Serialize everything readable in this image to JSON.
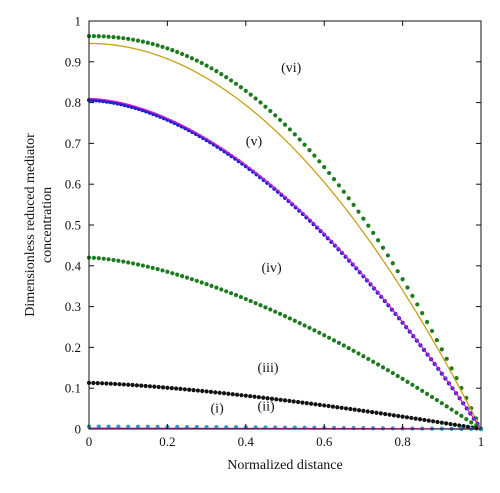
{
  "chart_data": {
    "type": "line",
    "xlabel": "Normalized distance",
    "ylabel_lines": [
      "Dimensionless reduced mediator",
      "concentration"
    ],
    "xlim": [
      0,
      1
    ],
    "ylim": [
      0,
      1
    ],
    "x_ticks": [
      "0",
      "0.2",
      "0.4",
      "0.6",
      "0.8",
      "1"
    ],
    "y_ticks": [
      "0",
      "0.1",
      "0.2",
      "0.3",
      "0.4",
      "0.5",
      "0.6",
      "0.7",
      "0.8",
      "0.9",
      "1"
    ],
    "grid": false,
    "legend": "none",
    "annotations": [
      {
        "text": "(i)",
        "x": 0.31,
        "y": 0.04
      },
      {
        "text": "(ii)",
        "x": 0.43,
        "y": 0.045
      },
      {
        "text": "(iii)",
        "x": 0.43,
        "y": 0.14
      },
      {
        "text": "(iv)",
        "x": 0.44,
        "y": 0.385
      },
      {
        "text": "(v)",
        "x": 0.4,
        "y": 0.695
      },
      {
        "text": "(vi)",
        "x": 0.49,
        "y": 0.875
      }
    ],
    "series": [
      {
        "id": "vi-numeric",
        "label": "(vi)",
        "style": "dotted",
        "color": "#1e7a1e",
        "center": 0.963,
        "exponent": 2.15,
        "points": 80
      },
      {
        "id": "vi-analytic",
        "label": "(vi)",
        "style": "solid",
        "color": "#c8a018",
        "center": 0.945,
        "exponent": 2.0
      },
      {
        "id": "v-numeric",
        "label": "(v)",
        "style": "dotted",
        "color": "#2020d0",
        "center": 0.806,
        "exponent": 1.75,
        "points": 110
      },
      {
        "id": "v-analytic",
        "label": "(v)",
        "style": "solid",
        "color": "#d020d0",
        "center": 0.81,
        "exponent": 1.75
      },
      {
        "id": "iv-numeric",
        "label": "(iv)",
        "style": "dotted",
        "color": "#1e7a1e",
        "center": 0.42,
        "exponent": 1.55,
        "points": 80
      },
      {
        "id": "iii-numeric",
        "label": "(iii)",
        "style": "dotted",
        "color": "#111111",
        "center": 0.113,
        "exponent": 1.4,
        "points": 90
      },
      {
        "id": "ii-numeric",
        "label": "(ii)",
        "style": "dotted",
        "color": "#20a0c8",
        "center": 0.006,
        "exponent": 1.3,
        "points": 40
      },
      {
        "id": "i-analytic",
        "label": "(i)",
        "style": "solid",
        "color": "#d020d0",
        "center": 0.002,
        "exponent": 1.3
      }
    ]
  }
}
